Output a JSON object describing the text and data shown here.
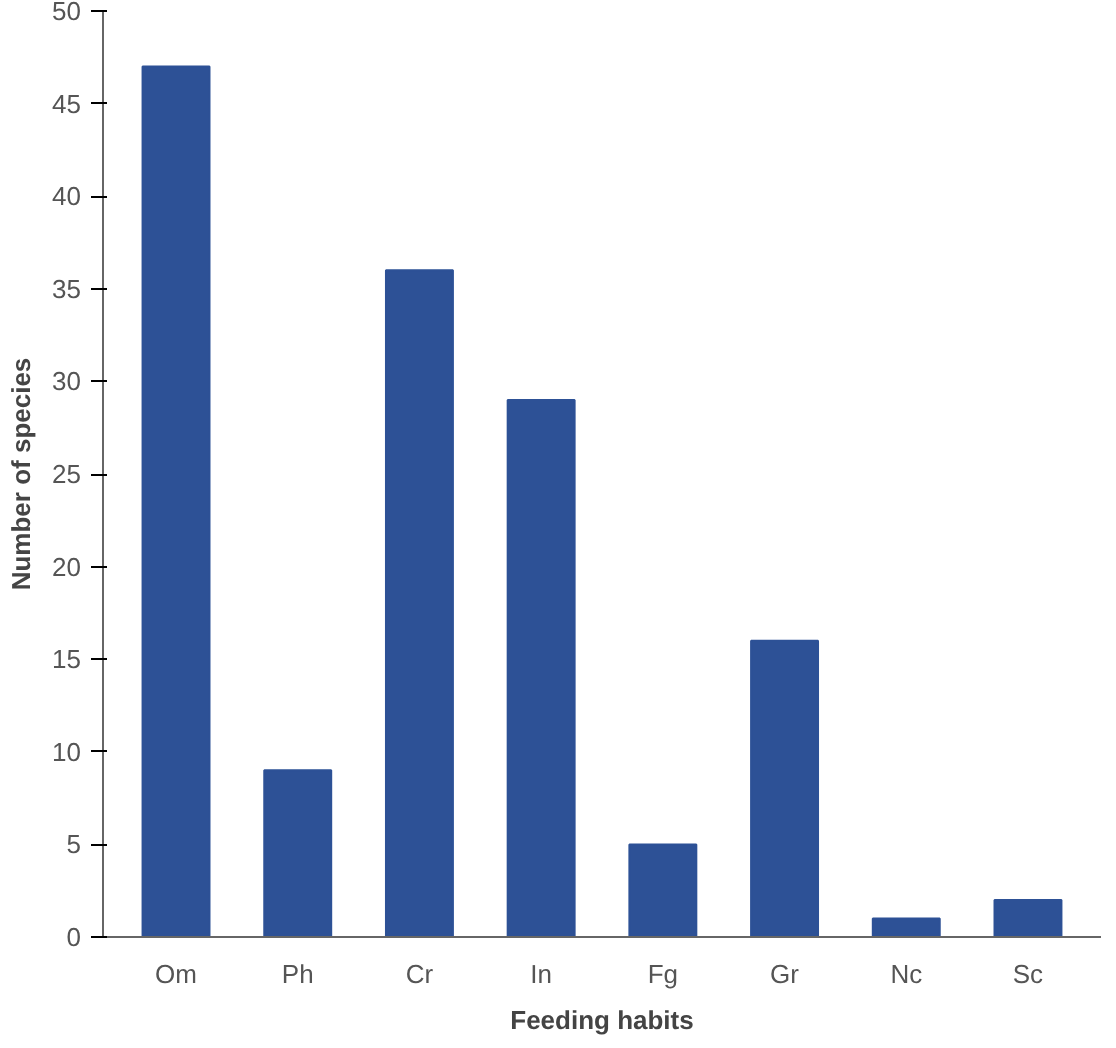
{
  "chart_data": {
    "type": "bar",
    "xlabel": "Feeding habits",
    "ylabel": "Number of species",
    "categories": [
      "Om",
      "Ph",
      "Cr",
      "In",
      "Fg",
      "Gr",
      "Nc",
      "Sc"
    ],
    "values": [
      47,
      9,
      36,
      29,
      5,
      16,
      1,
      2
    ],
    "color": "#2d5196",
    "ylim": [
      0,
      50
    ],
    "yticks": [
      0,
      5,
      10,
      15,
      20,
      25,
      30,
      35,
      40,
      45,
      50
    ],
    "grid": false
  }
}
